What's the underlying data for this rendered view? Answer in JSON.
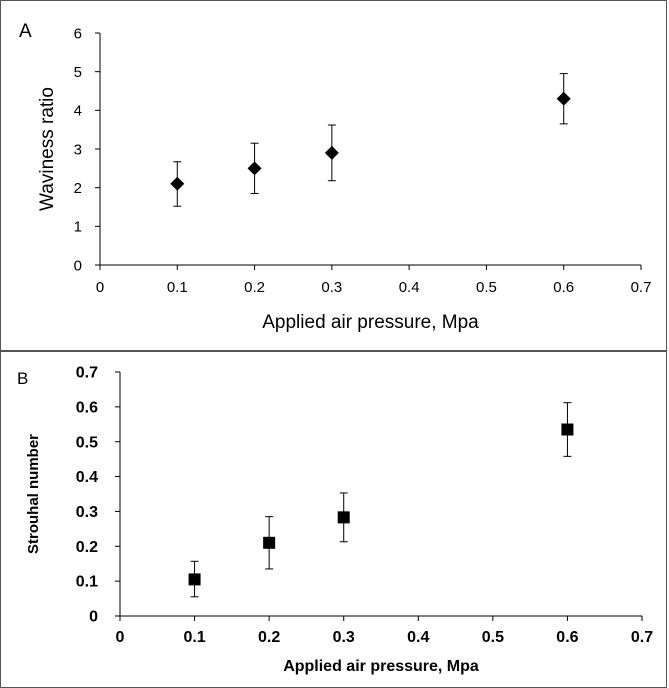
{
  "chart_data": [
    {
      "panel": "A",
      "type": "scatter",
      "xlabel": "Applied air pressure, Mpa",
      "ylabel": "Waviness ratio",
      "xlim": [
        0,
        0.7
      ],
      "ylim": [
        0,
        6
      ],
      "xticks": [
        "0",
        "0.1",
        "0.2",
        "0.3",
        "0.4",
        "0.5",
        "0.6",
        "0.7"
      ],
      "yticks": [
        "0",
        "1",
        "2",
        "3",
        "4",
        "5",
        "6"
      ],
      "marker": "diamond",
      "color": "#000000",
      "series": [
        {
          "x": [
            0.1,
            0.2,
            0.3,
            0.6
          ],
          "y": [
            2.1,
            2.5,
            2.9,
            4.3
          ],
          "err_low": [
            1.52,
            1.85,
            2.18,
            3.65
          ],
          "err_high": [
            2.67,
            3.15,
            3.62,
            4.95
          ]
        }
      ]
    },
    {
      "panel": "B",
      "type": "scatter",
      "xlabel": "Applied air pressure, Mpa",
      "ylabel": "Strouhal number",
      "xlim": [
        0,
        0.7
      ],
      "ylim": [
        0,
        0.7
      ],
      "xticks": [
        "0",
        "0.1",
        "0.2",
        "0.3",
        "0.4",
        "0.5",
        "0.6",
        "0.7"
      ],
      "yticks": [
        "0",
        "0.1",
        "0.2",
        "0.3",
        "0.4",
        "0.5",
        "0.6",
        "0.7"
      ],
      "marker": "square",
      "color": "#000000",
      "series": [
        {
          "x": [
            0.1,
            0.2,
            0.3,
            0.6
          ],
          "y": [
            0.105,
            0.21,
            0.283,
            0.535
          ],
          "err_low": [
            0.055,
            0.135,
            0.213,
            0.458
          ],
          "err_high": [
            0.157,
            0.285,
            0.353,
            0.612
          ]
        }
      ]
    }
  ]
}
